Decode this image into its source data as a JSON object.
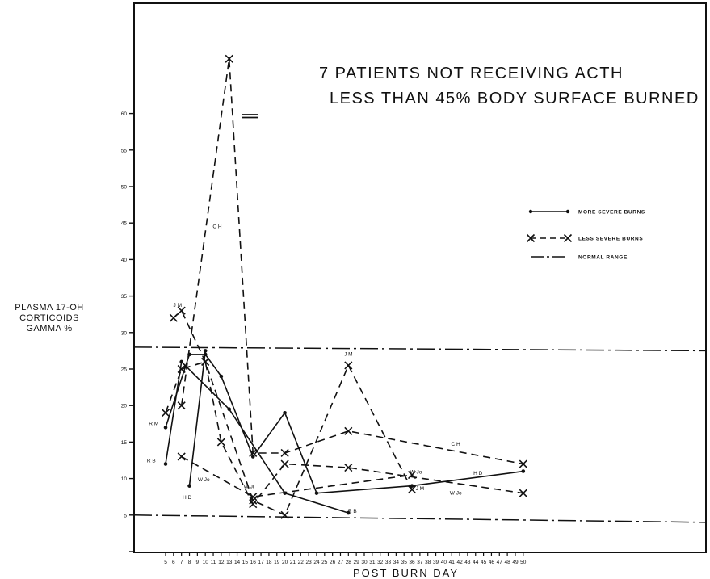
{
  "chart_data": {
    "type": "line",
    "title": "7 PATIENTS NOT RECEIVING ACTH",
    "subtitle": "LESS THAN 45% BODY SURFACE BURNED",
    "xlabel": "POST BURN DAY",
    "ylabel": [
      "PLASMA 17-OH",
      "CORTICOIDS",
      "GAMMA %"
    ],
    "x_ticks": [
      5,
      6,
      7,
      8,
      9,
      10,
      11,
      12,
      13,
      14,
      15,
      16,
      17,
      18,
      19,
      20,
      21,
      22,
      23,
      24,
      25,
      26,
      27,
      28,
      29,
      30,
      31,
      32,
      33,
      34,
      35,
      36,
      37,
      38,
      39,
      40,
      41,
      42,
      43,
      44,
      45,
      46,
      47,
      48,
      49,
      50
    ],
    "y_ticks": [
      5,
      10,
      15,
      20,
      25,
      30,
      35,
      40,
      45,
      50,
      55,
      60
    ],
    "xlim": [
      0,
      50
    ],
    "ylim": [
      0,
      67
    ],
    "grid": false,
    "legend_position": "right",
    "legend": [
      {
        "label": "MORE SEVERE BURNS",
        "style": "solid-dot"
      },
      {
        "label": "LESS SEVERE BURNS",
        "style": "dashed-x"
      },
      {
        "label": "NORMAL RANGE",
        "style": "dash-dot"
      }
    ],
    "normal_range": [
      {
        "from": [
          0,
          28
        ],
        "to": [
          50,
          27.5
        ]
      },
      {
        "from": [
          0,
          5
        ],
        "to": [
          50,
          4
        ]
      }
    ],
    "series": [
      {
        "name": "R.B.",
        "style": "solid",
        "marker": "dot",
        "points": [
          [
            5,
            12
          ],
          [
            7,
            26
          ],
          [
            13,
            19.5
          ],
          [
            20,
            8
          ],
          [
            28,
            5.3
          ]
        ]
      },
      {
        "name": "",
        "style": "solid",
        "marker": "dot",
        "points": [
          [
            5,
            17
          ],
          [
            8,
            27
          ],
          [
            10,
            27
          ],
          [
            12,
            24
          ],
          [
            16,
            13
          ],
          [
            20,
            19
          ],
          [
            24,
            8
          ],
          [
            36,
            9
          ],
          [
            50,
            11
          ]
        ]
      },
      {
        "name": "H.D.",
        "style": "solid",
        "marker": "dot",
        "points": [
          [
            8,
            9
          ],
          [
            10,
            27.5
          ]
        ]
      },
      {
        "name": "J.M.",
        "style": "dashed",
        "marker": "x",
        "points": [
          [
            6,
            32
          ],
          [
            7,
            33
          ],
          [
            10,
            26
          ],
          [
            16,
            7
          ],
          [
            20,
            5
          ],
          [
            28,
            25.5
          ],
          [
            36,
            8.5
          ]
        ]
      },
      {
        "name": "C.H.",
        "style": "dashed",
        "marker": "x",
        "points": [
          [
            7,
            20
          ],
          [
            13,
            67.5
          ],
          [
            16,
            13.5
          ],
          [
            20,
            13.5
          ],
          [
            28,
            16.5
          ],
          [
            50,
            12
          ]
        ]
      },
      {
        "name": "R.M.",
        "style": "dashed",
        "marker": "x",
        "points": [
          [
            5,
            19
          ],
          [
            7,
            25
          ],
          [
            10,
            26
          ],
          [
            12,
            15
          ],
          [
            16,
            6.5
          ],
          [
            20,
            12
          ],
          [
            28,
            11.5
          ],
          [
            50,
            8
          ]
        ]
      },
      {
        "name": "W.Jo.",
        "style": "dashed",
        "marker": "x",
        "points": [
          [
            7,
            13
          ],
          [
            16,
            7.5
          ],
          [
            36,
            10.5
          ]
        ]
      }
    ],
    "annotations": [
      {
        "text": "J M",
        "x": 6.5,
        "y": 33.5
      },
      {
        "text": "R M",
        "x": 3.5,
        "y": 17.3
      },
      {
        "text": "R B",
        "x": 3.2,
        "y": 12.2
      },
      {
        "text": "C H",
        "x": 11.5,
        "y": 44.3
      },
      {
        "text": "H D",
        "x": 7.7,
        "y": 7.2
      },
      {
        "text": "W Jo",
        "x": 9.8,
        "y": 9.6
      },
      {
        "text": "W Jr",
        "x": 15.5,
        "y": 8.7
      },
      {
        "text": "J M",
        "x": 28,
        "y": 26.8
      },
      {
        "text": "R B",
        "x": 28.5,
        "y": 5.3
      },
      {
        "text": "C H",
        "x": 41.5,
        "y": 14.5
      },
      {
        "text": "W Jo",
        "x": 36.5,
        "y": 10.7
      },
      {
        "text": "J M",
        "x": 37,
        "y": 8.4
      },
      {
        "text": "H D",
        "x": 44.3,
        "y": 10.5
      },
      {
        "text": "W Jo",
        "x": 41.5,
        "y": 7.8
      }
    ]
  }
}
